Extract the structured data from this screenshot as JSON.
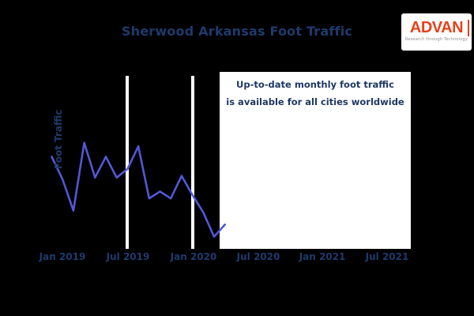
{
  "title": "Sherwood Arkansas Foot Traffic",
  "logo": {
    "name": "ADVAN",
    "tagline": "Research through Technology",
    "red": "#e8401c"
  },
  "overlay": {
    "line1": "Up-to-date monthly foot traffic",
    "line2": "is available for all cities worldwide"
  },
  "colors": {
    "background": "#000000",
    "title_text": "#1e3a6c",
    "axis_text": "#1e3a6c",
    "line": "#5258d6",
    "gridline": "#ffffff",
    "overlay_bg": "#ffffff",
    "overlay_text": "#1f3864"
  },
  "chart_data": {
    "type": "line",
    "title": "Sherwood Arkansas Foot Traffic",
    "xlabel": "",
    "ylabel": "Foot Traffic",
    "x": [
      "Dec 2018",
      "Jan 2019",
      "Feb 2019",
      "Mar 2019",
      "Apr 2019",
      "May 2019",
      "Jun 2019",
      "Jul 2019",
      "Aug 2019",
      "Sep 2019",
      "Oct 2019",
      "Nov 2019",
      "Dec 2019",
      "Jan 2020",
      "Feb 2020",
      "Mar 2020",
      "Apr 2020"
    ],
    "values": [
      53,
      40,
      22,
      61,
      41,
      53,
      41,
      46,
      59,
      29,
      33,
      29,
      42,
      31,
      21,
      7,
      14
    ],
    "ylim": [
      0,
      100
    ],
    "y_tick_labels": "none",
    "x_tick_labels": [
      "Jan 2019",
      "Jul 2019",
      "Jan 2020",
      "Jul 2020",
      "Jan 2021",
      "Jul 2021"
    ],
    "gridlines_at": [
      "Jul 2019",
      "Jan 2020"
    ],
    "legend": "none",
    "line_color": "#5258d6"
  }
}
